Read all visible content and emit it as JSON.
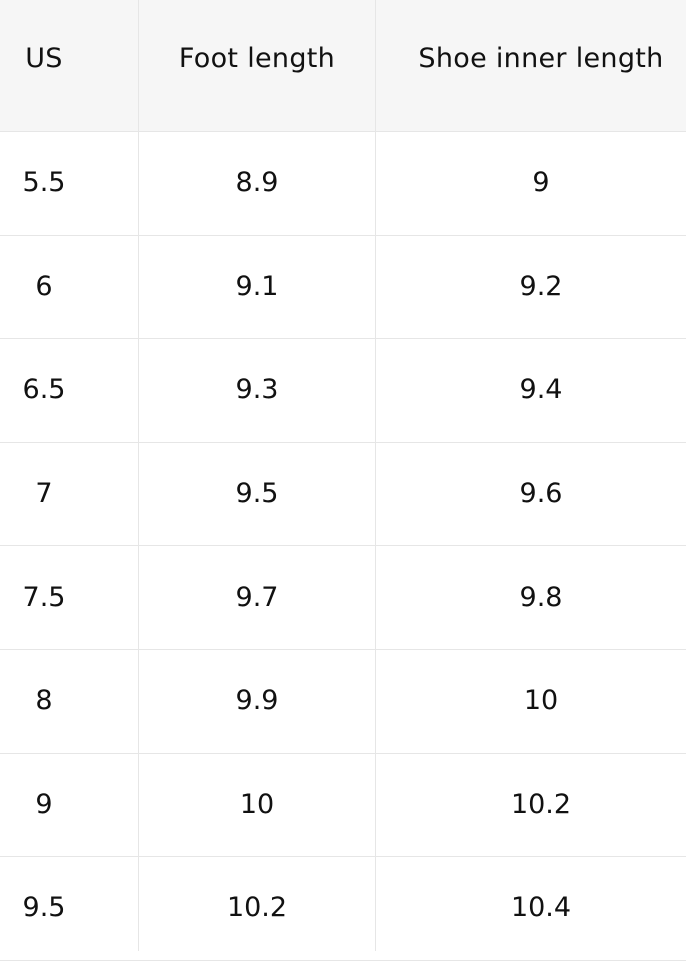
{
  "table": {
    "header": [
      "US",
      "Foot length",
      "Shoe inner length"
    ],
    "rows": [
      [
        "5.5",
        "8.9",
        "9"
      ],
      [
        "6",
        "9.1",
        "9.2"
      ],
      [
        "6.5",
        "9.3",
        "9.4"
      ],
      [
        "7",
        "9.5",
        "9.6"
      ],
      [
        "7.5",
        "9.7",
        "9.8"
      ],
      [
        "8",
        "9.9",
        "10"
      ],
      [
        "9",
        "10",
        "10.2"
      ],
      [
        "9.5",
        "10.2",
        "10.4"
      ]
    ]
  }
}
